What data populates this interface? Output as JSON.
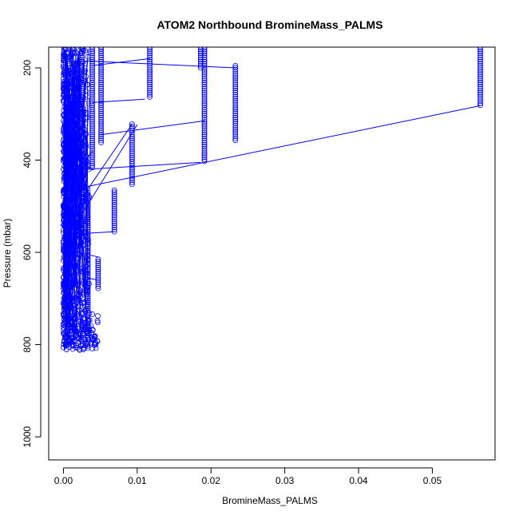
{
  "chart_data": {
    "type": "scatter",
    "title": "ATOM2 Northbound BromineMass_PALMS",
    "xlabel": "BromineMass_PALMS",
    "ylabel": "Pressure (mbar)",
    "xlim": [
      -0.002,
      0.0585
    ],
    "ylim": [
      1050,
      155
    ],
    "y_reversed": true,
    "x_ticks": [
      0.0,
      0.01,
      0.02,
      0.03,
      0.04,
      0.05
    ],
    "x_tick_labels": [
      "0.00",
      "0.01",
      "0.02",
      "0.03",
      "0.04",
      "0.05"
    ],
    "y_ticks": [
      200,
      400,
      600,
      800,
      1000
    ],
    "y_tick_labels": [
      "200",
      "400",
      "600",
      "800",
      "1000"
    ],
    "grid": false,
    "series_color": "#0000ff",
    "profiles": [
      {
        "x": 0.0565,
        "p_top": 155,
        "p_bottom": 282
      },
      {
        "x": 0.0233,
        "p_top": 195,
        "p_bottom": 358
      },
      {
        "x": 0.0191,
        "p_top": 155,
        "p_bottom": 403
      },
      {
        "x": 0.0186,
        "p_top": 155,
        "p_bottom": 200
      },
      {
        "x": 0.0117,
        "p_top": 155,
        "p_bottom": 265
      },
      {
        "x": 0.0093,
        "p_top": 322,
        "p_bottom": 455
      },
      {
        "x": 0.0069,
        "p_top": 465,
        "p_bottom": 555
      },
      {
        "x": 0.0051,
        "p_top": 155,
        "p_bottom": 365
      },
      {
        "x": 0.0047,
        "p_top": 615,
        "p_bottom": 680
      },
      {
        "x": 0.0039,
        "p_top": 155,
        "p_bottom": 420
      },
      {
        "x": 0.0025,
        "p_top": 155,
        "p_bottom": 570
      },
      {
        "x": 0.0033,
        "p_top": 470,
        "p_bottom": 810
      }
    ],
    "connectors": [
      {
        "x1": 0.0565,
        "p1": 282,
        "x2": 0.0024,
        "p2": 460
      },
      {
        "x1": 0.0233,
        "p1": 200,
        "x2": 0.003,
        "p2": 185
      },
      {
        "x1": 0.0191,
        "p1": 315,
        "x2": 0.005,
        "p2": 345
      },
      {
        "x1": 0.0186,
        "p1": 405,
        "x2": 0.003,
        "p2": 420
      },
      {
        "x1": 0.0117,
        "p1": 180,
        "x2": 0.004,
        "p2": 195
      },
      {
        "x1": 0.011,
        "p1": 268,
        "x2": 0.004,
        "p2": 275
      },
      {
        "x1": 0.0093,
        "p1": 322,
        "x2": 0.003,
        "p2": 470
      },
      {
        "x1": 0.01,
        "p1": 323,
        "x2": 0.002,
        "p2": 530
      },
      {
        "x1": 0.0069,
        "p1": 555,
        "x2": 0.002,
        "p2": 560
      },
      {
        "x1": 0.0047,
        "p1": 660,
        "x2": 0.003,
        "p2": 655
      },
      {
        "x1": 0.0047,
        "p1": 610,
        "x2": 0.002,
        "p2": 600
      },
      {
        "x1": 0.004,
        "p1": 380,
        "x2": 0.002,
        "p2": 420
      }
    ],
    "dense_region": {
      "x_min": 0.0,
      "x_max": 0.0035,
      "p_min": 155,
      "p_max": 812
    }
  }
}
